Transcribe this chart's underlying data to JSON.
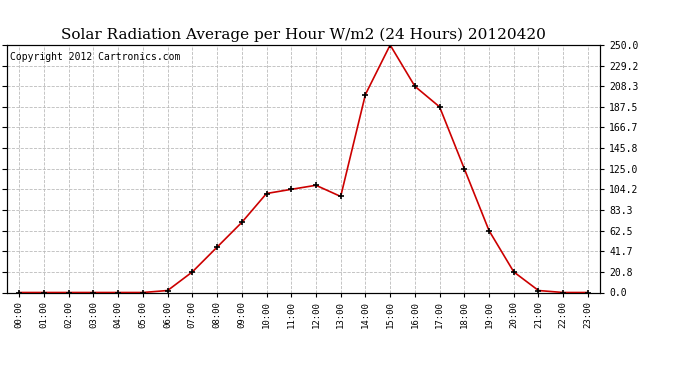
{
  "title": "Solar Radiation Average per Hour W/m2 (24 Hours) 20120420",
  "copyright": "Copyright 2012 Cartronics.com",
  "hours": [
    "00:00",
    "01:00",
    "02:00",
    "03:00",
    "04:00",
    "05:00",
    "06:00",
    "07:00",
    "08:00",
    "09:00",
    "10:00",
    "11:00",
    "12:00",
    "13:00",
    "14:00",
    "15:00",
    "16:00",
    "17:00",
    "18:00",
    "19:00",
    "20:00",
    "21:00",
    "22:00",
    "23:00"
  ],
  "values": [
    0.0,
    0.0,
    0.0,
    0.0,
    0.0,
    0.0,
    2.0,
    20.8,
    45.8,
    70.8,
    100.0,
    104.2,
    108.3,
    97.0,
    200.0,
    250.0,
    208.3,
    187.5,
    125.0,
    62.5,
    20.8,
    2.0,
    0.0,
    0.0
  ],
  "line_color": "#cc0000",
  "marker_color": "#000000",
  "bg_color": "#ffffff",
  "grid_color": "#bbbbbb",
  "ylim": [
    0,
    250
  ],
  "yticks": [
    0.0,
    20.8,
    41.7,
    62.5,
    83.3,
    104.2,
    125.0,
    145.8,
    166.7,
    187.5,
    208.3,
    229.2,
    250.0
  ],
  "ytick_labels": [
    "0.0",
    "20.8",
    "41.7",
    "62.5",
    "83.3",
    "104.2",
    "125.0",
    "145.8",
    "166.7",
    "187.5",
    "208.3",
    "229.2",
    "250.0"
  ],
  "title_fontsize": 11,
  "copyright_fontsize": 7
}
